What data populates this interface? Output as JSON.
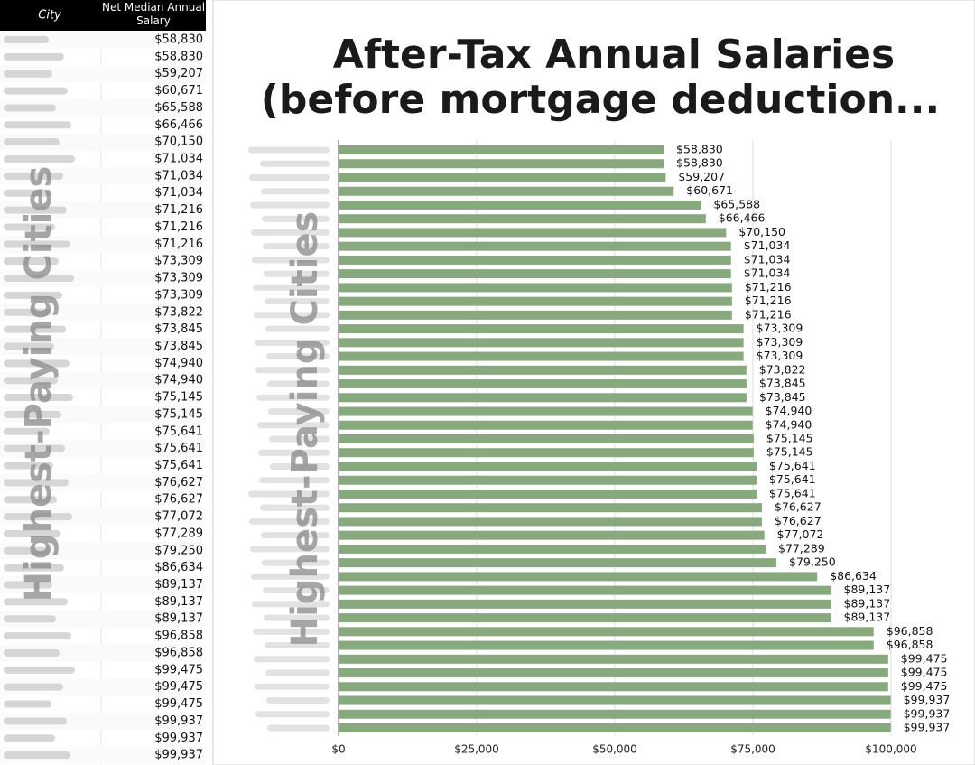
{
  "table": {
    "columns": [
      "City",
      "Net Median Annual Salary"
    ],
    "rows": [
      "$58,830",
      "$58,830",
      "$59,207",
      "$60,671",
      "$65,588",
      "$66,466",
      "$70,150",
      "$71,034",
      "$71,034",
      "$71,034",
      "$71,216",
      "$71,216",
      "$71,216",
      "$73,309",
      "$73,309",
      "$73,309",
      "$73,822",
      "$73,845",
      "$73,845",
      "$74,940",
      "$74,940",
      "$75,145",
      "$75,145",
      "$75,641",
      "$75,641",
      "$75,641",
      "$76,627",
      "$76,627",
      "$77,072",
      "$77,289",
      "$79,250",
      "$86,634",
      "$89,137",
      "$89,137",
      "$89,137",
      "$96,858",
      "$96,858",
      "$99,475",
      "$99,475",
      "$99,475",
      "$99,937",
      "$99,937",
      "$99,937"
    ]
  },
  "watermark": "Highest-Paying Cities",
  "chart_data": {
    "type": "barh",
    "title": [
      "After-Tax Annual Salaries",
      "(before mortgage deduction..."
    ],
    "categories": [
      null,
      null,
      null,
      null,
      null,
      null,
      null,
      null,
      null,
      null,
      null,
      null,
      null,
      null,
      null,
      null,
      null,
      null,
      null,
      null,
      null,
      null,
      null,
      null,
      null,
      null,
      null,
      null,
      null,
      null,
      null,
      null,
      null,
      null,
      null,
      null,
      null,
      null,
      null,
      null,
      null,
      null,
      null
    ],
    "values": [
      58830,
      58830,
      59207,
      60671,
      65588,
      66466,
      70150,
      71034,
      71034,
      71034,
      71216,
      71216,
      71216,
      73309,
      73309,
      73309,
      73822,
      73845,
      73845,
      74940,
      74940,
      75145,
      75145,
      75641,
      75641,
      75641,
      76627,
      76627,
      77072,
      77289,
      79250,
      86634,
      89137,
      89137,
      89137,
      96858,
      96858,
      99475,
      99475,
      99475,
      99937,
      99937,
      99937
    ],
    "value_labels": [
      "$58,830",
      "$58,830",
      "$59,207",
      "$60,671",
      "$65,588",
      "$66,466",
      "$70,150",
      "$71,034",
      "$71,034",
      "$71,034",
      "$71,216",
      "$71,216",
      "$71,216",
      "$73,309",
      "$73,309",
      "$73,309",
      "$73,822",
      "$73,845",
      "$73,845",
      "$74,940",
      "$74,940",
      "$75,145",
      "$75,145",
      "$75,641",
      "$75,641",
      "$75,641",
      "$76,627",
      "$76,627",
      "$77,072",
      "$77,289",
      "$79,250",
      "$86,634",
      "$89,137",
      "$89,137",
      "$89,137",
      "$96,858",
      "$96,858",
      "$99,475",
      "$99,475",
      "$99,475",
      "$99,937",
      "$99,937",
      "$99,937"
    ],
    "color": "#88a87d",
    "xlim": [
      0,
      100000
    ],
    "xticks": [
      {
        "value": 0,
        "label": "$0"
      },
      {
        "value": 25000,
        "label": "$25,000"
      },
      {
        "value": 50000,
        "label": "$50,000"
      },
      {
        "value": 75000,
        "label": "$75,000"
      },
      {
        "value": 100000,
        "label": "$100,000"
      }
    ],
    "grid": true
  }
}
